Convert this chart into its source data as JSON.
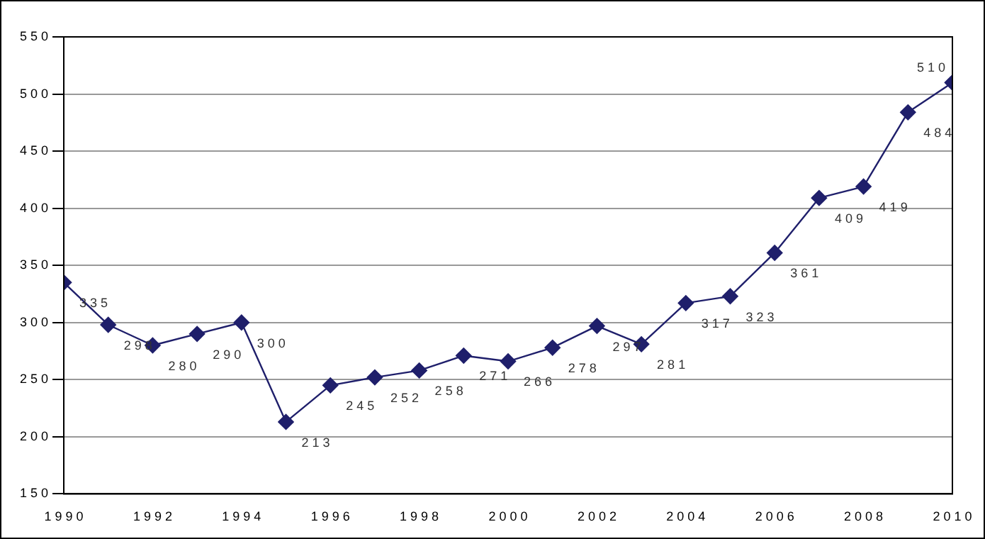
{
  "chart_data": {
    "type": "line",
    "x": [
      1990,
      1991,
      1992,
      1993,
      1994,
      1995,
      1996,
      1997,
      1998,
      1999,
      2000,
      2001,
      2002,
      2003,
      2004,
      2005,
      2006,
      2007,
      2008,
      2009,
      2010
    ],
    "series": [
      {
        "color": "#1f1f6b",
        "values": [
          335,
          298,
          280,
          290,
          300,
          213,
          245,
          252,
          258,
          271,
          266,
          278,
          297,
          281,
          317,
          323,
          361,
          409,
          419,
          484,
          510
        ]
      }
    ],
    "xlim": [
      1990,
      2010
    ],
    "xticks": [
      1990,
      1992,
      1994,
      1996,
      1998,
      2000,
      2002,
      2004,
      2006,
      2008,
      2010
    ],
    "ylim": [
      150,
      550
    ],
    "yticks": [
      150,
      200,
      250,
      300,
      350,
      400,
      450,
      500,
      550
    ],
    "grid": "y",
    "legend": false,
    "marker": "diamond",
    "line_style": "solid",
    "data_labels": true
  }
}
